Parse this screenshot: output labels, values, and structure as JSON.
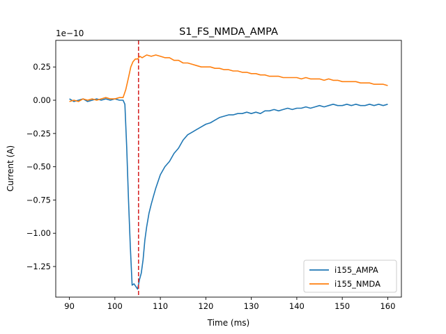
{
  "chart_data": {
    "type": "line",
    "title": "S1_FS_NMDA_AMPA",
    "xlabel": "Time (ms)",
    "ylabel": "Current (A)",
    "y_scale_label": "1e−10",
    "xlim": [
      87,
      163
    ],
    "ylim": [
      -1.48,
      0.45
    ],
    "x_ticks": [
      90,
      100,
      110,
      120,
      130,
      140,
      150,
      160
    ],
    "x_tick_labels": [
      "90",
      "100",
      "110",
      "120",
      "130",
      "140",
      "150",
      "160"
    ],
    "y_ticks": [
      -1.25,
      -1.0,
      -0.75,
      -0.5,
      -0.25,
      0.0,
      0.25
    ],
    "y_tick_labels": [
      "−1.25",
      "−1.00",
      "−0.75",
      "−0.50",
      "−0.25",
      "0.00",
      "0.25"
    ],
    "grid": false,
    "legend_position": "lower-right",
    "vline": {
      "x": 105.2,
      "color": "#d62728",
      "style": "dashed"
    },
    "series": [
      {
        "name": "i155_AMPA",
        "color": "#1f77b4",
        "x": [
          90,
          91,
          92,
          93,
          94,
          95,
          96,
          97,
          98,
          99,
          100,
          101,
          101.8,
          102.2,
          102.6,
          103,
          103.4,
          103.8,
          104.2,
          104.6,
          105,
          105.4,
          105.8,
          106.2,
          106.6,
          107,
          107.5,
          108,
          108.5,
          109,
          110,
          111,
          112,
          113,
          114,
          115,
          116,
          117,
          118,
          119,
          120,
          121,
          122,
          123,
          124,
          125,
          126,
          127,
          128,
          129,
          130,
          131,
          132,
          133,
          134,
          135,
          136,
          137,
          138,
          139,
          140,
          141,
          142,
          143,
          144,
          145,
          146,
          147,
          148,
          149,
          150,
          151,
          152,
          153,
          154,
          155,
          156,
          157,
          158,
          159,
          160
        ],
        "values": [
          0.01,
          -0.01,
          0.0,
          0.01,
          -0.01,
          0.0,
          0.01,
          0.0,
          0.01,
          0.0,
          0.01,
          0.0,
          0.0,
          -0.03,
          -0.35,
          -0.75,
          -1.1,
          -1.39,
          -1.38,
          -1.4,
          -1.42,
          -1.35,
          -1.3,
          -1.2,
          -1.05,
          -0.95,
          -0.85,
          -0.78,
          -0.72,
          -0.66,
          -0.56,
          -0.5,
          -0.46,
          -0.4,
          -0.36,
          -0.3,
          -0.26,
          -0.24,
          -0.22,
          -0.2,
          -0.18,
          -0.17,
          -0.15,
          -0.13,
          -0.12,
          -0.11,
          -0.11,
          -0.1,
          -0.1,
          -0.09,
          -0.1,
          -0.09,
          -0.1,
          -0.08,
          -0.08,
          -0.07,
          -0.08,
          -0.07,
          -0.06,
          -0.07,
          -0.06,
          -0.06,
          -0.05,
          -0.06,
          -0.05,
          -0.04,
          -0.05,
          -0.04,
          -0.03,
          -0.04,
          -0.04,
          -0.03,
          -0.04,
          -0.03,
          -0.04,
          -0.04,
          -0.03,
          -0.04,
          -0.03,
          -0.04,
          -0.03
        ]
      },
      {
        "name": "i155_NMDA",
        "color": "#ff7f0e",
        "x": [
          90,
          91,
          92,
          93,
          94,
          95,
          96,
          97,
          98,
          99,
          100,
          101,
          101.8,
          102.4,
          103,
          103.5,
          104,
          104.5,
          105,
          105.5,
          106,
          107,
          108,
          109,
          110,
          111,
          112,
          113,
          114,
          115,
          116,
          117,
          118,
          119,
          120,
          121,
          122,
          123,
          124,
          125,
          126,
          127,
          128,
          129,
          130,
          131,
          132,
          133,
          134,
          135,
          136,
          137,
          138,
          139,
          140,
          141,
          142,
          143,
          144,
          145,
          146,
          147,
          148,
          149,
          150,
          151,
          152,
          153,
          154,
          155,
          156,
          157,
          158,
          159,
          160
        ],
        "values": [
          -0.01,
          0.0,
          -0.01,
          0.01,
          0.0,
          0.01,
          0.0,
          0.01,
          0.02,
          0.01,
          0.01,
          0.02,
          0.02,
          0.08,
          0.17,
          0.25,
          0.29,
          0.31,
          0.31,
          0.33,
          0.32,
          0.34,
          0.33,
          0.34,
          0.33,
          0.32,
          0.32,
          0.3,
          0.3,
          0.28,
          0.28,
          0.27,
          0.26,
          0.25,
          0.25,
          0.25,
          0.24,
          0.24,
          0.23,
          0.23,
          0.22,
          0.22,
          0.21,
          0.21,
          0.2,
          0.2,
          0.19,
          0.19,
          0.18,
          0.18,
          0.18,
          0.17,
          0.17,
          0.17,
          0.17,
          0.16,
          0.17,
          0.16,
          0.16,
          0.16,
          0.15,
          0.16,
          0.15,
          0.15,
          0.14,
          0.14,
          0.14,
          0.14,
          0.13,
          0.13,
          0.13,
          0.12,
          0.12,
          0.12,
          0.11
        ]
      }
    ]
  }
}
